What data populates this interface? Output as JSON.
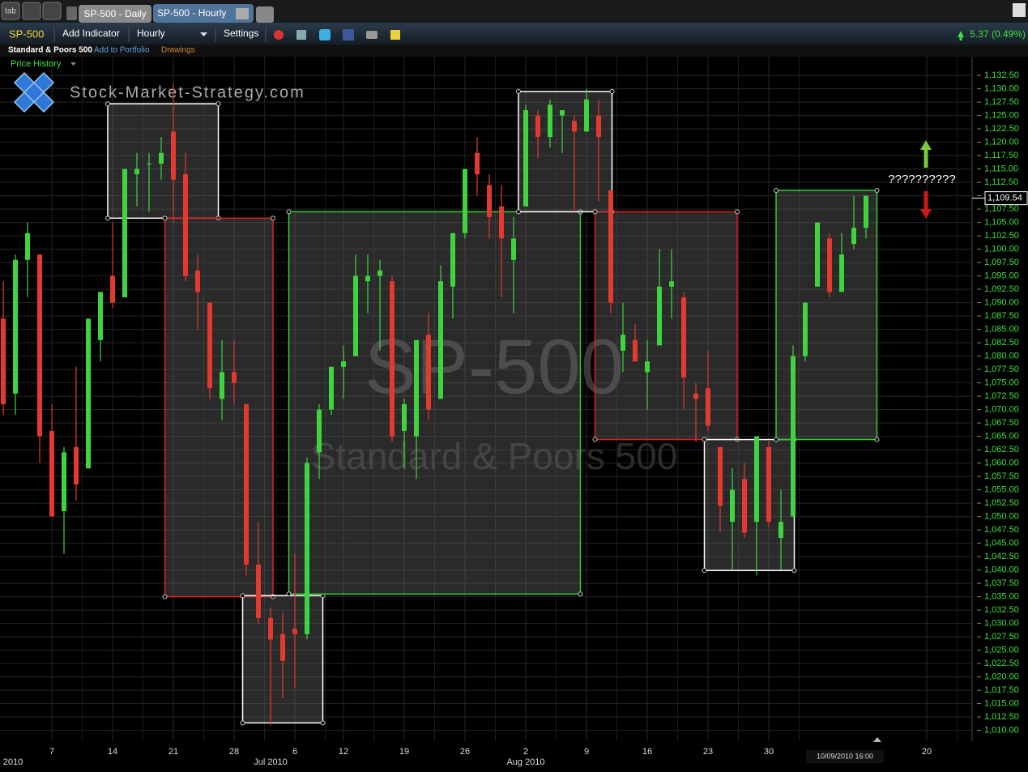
{
  "toolbar": {
    "tab_button": "tab",
    "tabs": [
      "SP-500 - Daily",
      "SP-500 - Hourly"
    ],
    "symbol": "SP-500",
    "add_indicator": "Add Indicator",
    "interval": "Hourly",
    "settings": "Settings",
    "change": "5.37 (0.49%)",
    "instrument_name": "Standard & Poors 500",
    "add_to_portfolio": "Add to Portfolio",
    "drawings": "Drawings",
    "price_history": "Price History"
  },
  "chart_data": {
    "type": "candlestick",
    "logo_text": "Stock-Market-Strategy.com",
    "watermark_symbol": "SP-500",
    "watermark_name": "Standard & Poors 500",
    "annotation": "??????????",
    "cursor_label": "10/09/2010 16:00",
    "up_color": "#3fd43f",
    "down_color": "#e23a2e",
    "grid": true,
    "categories": [
      null,
      null,
      null,
      null,
      "7",
      null,
      null,
      null,
      null,
      "14",
      null,
      null,
      null,
      null,
      "21",
      null,
      null,
      null,
      null,
      "28",
      null,
      null,
      null,
      null,
      "6",
      null,
      null,
      null,
      "12",
      null,
      null,
      null,
      null,
      "19",
      null,
      null,
      null,
      null,
      "26",
      null,
      null,
      null,
      null,
      "2",
      null,
      null,
      null,
      null,
      "9",
      null,
      null,
      null,
      null,
      "16",
      null,
      null,
      null,
      null,
      "23",
      null,
      null,
      null,
      null,
      "30",
      null,
      null,
      null,
      null,
      null,
      null,
      null,
      null,
      null,
      null,
      null,
      null,
      "20",
      null
    ],
    "period_categories": [
      "2010",
      null,
      null,
      null,
      null,
      null,
      null,
      null,
      null,
      null,
      null,
      null,
      null,
      null,
      null,
      null,
      null,
      null,
      null,
      null,
      null,
      null,
      "Jul 2010",
      null,
      null,
      null,
      null,
      null,
      null,
      null,
      null,
      null,
      null,
      null,
      null,
      null,
      null,
      null,
      null,
      null,
      null,
      null,
      null,
      "Aug 2010",
      null,
      null,
      null,
      null,
      null,
      null,
      null,
      null,
      null,
      null,
      null,
      null,
      null,
      null,
      null,
      null,
      null,
      null,
      null,
      null,
      null,
      null,
      null,
      null,
      null,
      null,
      null,
      null,
      null,
      null,
      null,
      null,
      null,
      null
    ],
    "open": [
      1087,
      1073,
      1098,
      1099,
      1066,
      1051,
      1063,
      1059,
      1083,
      1095,
      1091,
      1114,
      1116,
      1116,
      1122,
      1114,
      1096,
      1090,
      1072,
      1077,
      1071,
      1041,
      1031,
      1028,
      1029,
      1028,
      1062,
      1070,
      1078,
      1080,
      1094,
      1095,
      1094,
      1066,
      1065,
      1084,
      1072,
      1093,
      1103,
      1118,
      1112,
      1108,
      1098,
      1108,
      1125,
      1121,
      1125,
      1124,
      1122,
      1125,
      1111,
      1081,
      1083,
      1077,
      1082,
      1093,
      1091,
      1073,
      1074,
      1063,
      1049,
      1057,
      1049,
      1063,
      1046,
      1050,
      1080,
      1093,
      1102,
      1092,
      1101,
      1104,
      null,
      null,
      null,
      null,
      null,
      null
    ],
    "high": [
      1094,
      1099,
      1105,
      1099,
      1071,
      1063,
      1078,
      1087,
      1092,
      1105,
      1115,
      1118,
      1118,
      1121,
      1131,
      1118,
      1099,
      1090,
      1083,
      1083,
      1071,
      1049,
      1033,
      1032,
      1043,
      1061,
      1071,
      1078,
      1082,
      1099,
      1099,
      1098,
      1095,
      1072,
      1083,
      1088,
      1097,
      1103,
      1115,
      1121,
      1114,
      1112,
      1106,
      1127,
      1126,
      1128,
      1126,
      1125,
      1130,
      1128,
      1111,
      1090,
      1086,
      1083,
      1100,
      1100,
      1092,
      1075,
      1081,
      1063,
      1059,
      1060,
      1065,
      1064,
      1055,
      1082,
      1090,
      1105,
      1103,
      1103,
      1110,
      1110,
      null,
      null,
      null,
      null,
      null,
      null
    ],
    "low": [
      1069,
      1069,
      1091,
      1060,
      1050,
      1043,
      1053,
      1059,
      1079,
      1089,
      1091,
      1108,
      1107,
      1113,
      1105,
      1094,
      1085,
      1072,
      1068,
      1071,
      1039,
      1030,
      1011,
      1016,
      1018,
      1027,
      1057,
      1069,
      1072,
      1080,
      1088,
      1081,
      1064,
      1059,
      1057,
      1068,
      1072,
      1087,
      1102,
      1110,
      1102,
      1091,
      1088,
      1108,
      1117,
      1119,
      1118,
      1107,
      1122,
      1109,
      1088,
      1077,
      1079,
      1070,
      1082,
      1087,
      1070,
      1064,
      1066,
      1047,
      1040,
      1046,
      1039,
      1048,
      1040,
      1050,
      1079,
      1093,
      1091,
      1092,
      1100,
      1102,
      null,
      null,
      null,
      null,
      null,
      null
    ],
    "close": [
      1071,
      1098,
      1103,
      1065,
      1050,
      1062,
      1056,
      1087,
      1092,
      1090,
      1115,
      1115,
      1116,
      1118,
      1113,
      1095,
      1092,
      1074,
      1077,
      1075,
      1041,
      1031,
      1027,
      1023,
      1028,
      1060,
      1070,
      1078,
      1079,
      1095,
      1095,
      1096,
      1065,
      1071,
      1083,
      1070,
      1094,
      1103,
      1115,
      1114,
      1106,
      1102,
      1102,
      1126,
      1121,
      1127,
      1126,
      1122,
      1128,
      1121,
      1090,
      1084,
      1079,
      1079,
      1093,
      1094,
      1076,
      1072,
      1067,
      1052,
      1055,
      1047,
      1065,
      1049,
      1049,
      1080,
      1090,
      1105,
      1092,
      1099,
      1104,
      1110,
      null,
      null,
      null,
      null,
      null,
      null
    ],
    "last_price": {
      "value": 1109.54,
      "label": "1,109.54"
    },
    "boxes": [
      {
        "color": "#ffffff",
        "x_range": [
          8.6,
          17.7
        ],
        "y_range": [
          1105.8,
          1127.2
        ]
      },
      {
        "color": "#e02020",
        "x_range": [
          13.3,
          22.2
        ],
        "y_range": [
          1035.0,
          1105.8
        ]
      },
      {
        "color": "#ffffff",
        "x_range": [
          19.7,
          26.3
        ],
        "y_range": [
          1011.4,
          1035.2
        ]
      },
      {
        "color": "#30d030",
        "x_range": [
          23.5,
          47.5
        ],
        "y_range": [
          1035.5,
          1107.0
        ]
      },
      {
        "color": "#ffffff",
        "x_range": [
          42.4,
          50.1
        ],
        "y_range": [
          1107.0,
          1129.5
        ]
      },
      {
        "color": "#e02020",
        "x_range": [
          48.7,
          60.4
        ],
        "y_range": [
          1064.4,
          1107.0
        ]
      },
      {
        "color": "#ffffff",
        "x_range": [
          57.7,
          65.1
        ],
        "y_range": [
          1039.9,
          1064.4
        ]
      },
      {
        "color": "#30d030",
        "x_range": [
          63.6,
          71.9
        ],
        "y_range": [
          1064.4,
          1111.0
        ]
      }
    ],
    "ylim": [
      1006,
      1136
    ],
    "yticks": [
      {
        "value": 1010,
        "label": "1,010.00"
      },
      {
        "value": 1012.5,
        "label": "1,012.50"
      },
      {
        "value": 1015,
        "label": "1,015.00"
      },
      {
        "value": 1017.5,
        "label": "1,017.50"
      },
      {
        "value": 1020,
        "label": "1,020.00"
      },
      {
        "value": 1022.5,
        "label": "1,022.50"
      },
      {
        "value": 1025,
        "label": "1,025.00"
      },
      {
        "value": 1027.5,
        "label": "1,027.50"
      },
      {
        "value": 1030,
        "label": "1,030.00"
      },
      {
        "value": 1032.5,
        "label": "1,032.50"
      },
      {
        "value": 1035,
        "label": "1,035.00"
      },
      {
        "value": 1037.5,
        "label": "1,037.50"
      },
      {
        "value": 1040,
        "label": "1,040.00"
      },
      {
        "value": 1042.5,
        "label": "1,042.50"
      },
      {
        "value": 1045,
        "label": "1,045.00"
      },
      {
        "value": 1047.5,
        "label": "1,047.50"
      },
      {
        "value": 1050,
        "label": "1,050.00"
      },
      {
        "value": 1052.5,
        "label": "1,052.50"
      },
      {
        "value": 1055,
        "label": "1,055.00"
      },
      {
        "value": 1057.5,
        "label": "1,057.50"
      },
      {
        "value": 1060,
        "label": "1,060.00"
      },
      {
        "value": 1062.5,
        "label": "1,062.50"
      },
      {
        "value": 1065,
        "label": "1,065.00"
      },
      {
        "value": 1067.5,
        "label": "1,067.50"
      },
      {
        "value": 1070,
        "label": "1,070.00"
      },
      {
        "value": 1072.5,
        "label": "1,072.50"
      },
      {
        "value": 1075,
        "label": "1,075.00"
      },
      {
        "value": 1077.5,
        "label": "1,077.50"
      },
      {
        "value": 1080,
        "label": "1,080.00"
      },
      {
        "value": 1082.5,
        "label": "1,082.50"
      },
      {
        "value": 1085,
        "label": "1,085.00"
      },
      {
        "value": 1087.5,
        "label": "1,087.50"
      },
      {
        "value": 1090,
        "label": "1,090.00"
      },
      {
        "value": 1092.5,
        "label": "1,092.50"
      },
      {
        "value": 1095,
        "label": "1,095.00"
      },
      {
        "value": 1097.5,
        "label": "1,097.50"
      },
      {
        "value": 1100,
        "label": "1,100.00"
      },
      {
        "value": 1102.5,
        "label": "1,102.50"
      },
      {
        "value": 1105,
        "label": "1,105.00"
      },
      {
        "value": 1107.5,
        "label": "1,107.50"
      },
      {
        "value": 1110,
        "label": "1,110.00"
      },
      {
        "value": 1112.5,
        "label": "1,112.50"
      },
      {
        "value": 1115,
        "label": "1,115.00"
      },
      {
        "value": 1117.5,
        "label": "1,117.50"
      },
      {
        "value": 1120,
        "label": "1,120.00"
      },
      {
        "value": 1122.5,
        "label": "1,122.50"
      },
      {
        "value": 1125,
        "label": "1,125.00"
      },
      {
        "value": 1127.5,
        "label": "1,127.50"
      },
      {
        "value": 1130,
        "label": "1,130.00"
      },
      {
        "value": 1132.5,
        "label": "1,132.50"
      }
    ]
  }
}
